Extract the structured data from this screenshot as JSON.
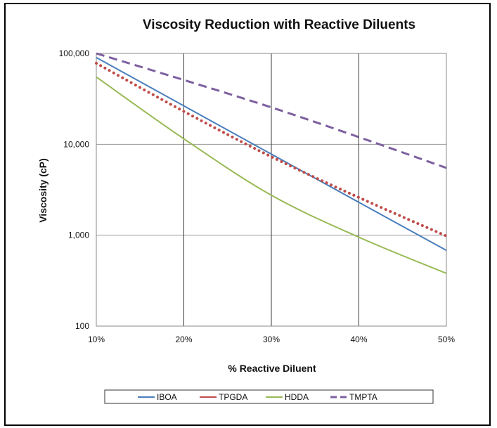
{
  "chart_data": {
    "type": "line",
    "title": "Viscosity Reduction with Reactive Diluents",
    "xlabel": "% Reactive Diluent",
    "ylabel": "Viscosity (cP)",
    "x": [
      10,
      20,
      30,
      40,
      50
    ],
    "x_tick_labels": [
      "10%",
      "20%",
      "30%",
      "40%",
      "50%"
    ],
    "xlim": [
      10,
      50
    ],
    "y_scale": "log",
    "ylim": [
      100,
      100000
    ],
    "y_ticks": [
      100,
      1000,
      10000,
      100000
    ],
    "y_tick_labels": [
      "100",
      "1,000",
      "10,000",
      "100,000"
    ],
    "grid": true,
    "legend_position": "bottom",
    "series": [
      {
        "name": "IBOA",
        "color": "#4a7ebb",
        "style": "solid",
        "values": [
          90000,
          26500,
          7800,
          2300,
          680
        ]
      },
      {
        "name": "TPGDA",
        "color": "#be4b48",
        "style": "dotted",
        "values": [
          78000,
          23000,
          7300,
          2600,
          980
        ]
      },
      {
        "name": "HDDA",
        "color": "#98b954",
        "style": "solid",
        "values": [
          55000,
          11500,
          2750,
          950,
          380
        ]
      },
      {
        "name": "TMPTA",
        "color": "#7d60a0",
        "style": "dashed",
        "values": [
          100000,
          51000,
          25500,
          12000,
          5500
        ]
      }
    ]
  }
}
